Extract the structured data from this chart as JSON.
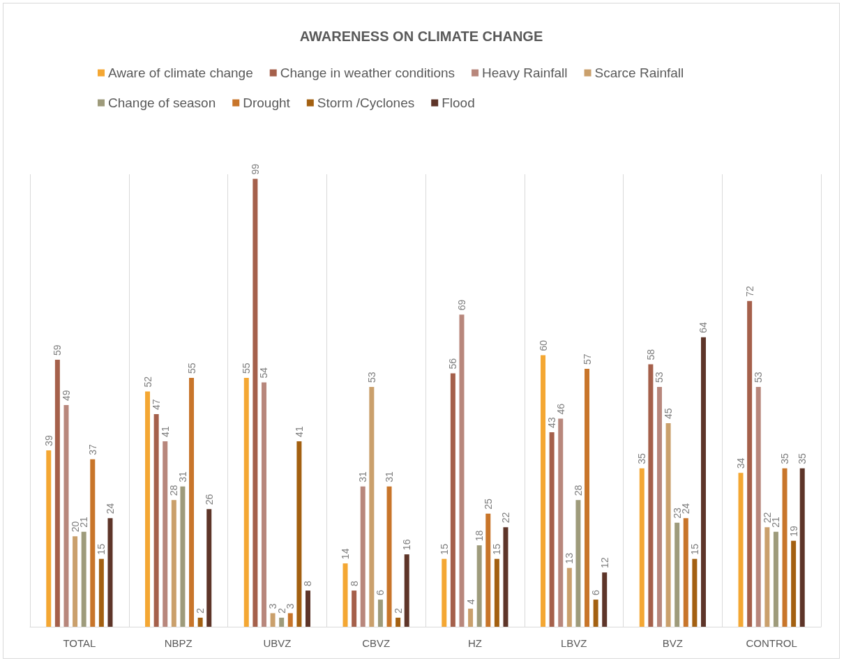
{
  "chart_data": {
    "type": "bar",
    "title": "AWARENESS ON CLIMATE CHANGE",
    "categories": [
      "TOTAL",
      "NBPZ",
      "UBVZ",
      "CBVZ",
      "HZ",
      "LBVZ",
      "BVZ",
      "CONTROL"
    ],
    "series": [
      {
        "name": "Aware of climate change",
        "color": "#f4a733",
        "values": [
          39,
          52,
          55,
          14,
          15,
          60,
          35,
          34
        ]
      },
      {
        "name": "Change in weather conditions",
        "color": "#a5604b",
        "values": [
          59,
          47,
          99,
          8,
          56,
          43,
          58,
          72
        ]
      },
      {
        "name": "Heavy Rainfall",
        "color": "#b8877c",
        "values": [
          49,
          41,
          54,
          31,
          69,
          46,
          53,
          53
        ]
      },
      {
        "name": "Scarce Rainfall",
        "color": "#caa06c",
        "values": [
          20,
          28,
          3,
          53,
          4,
          13,
          45,
          22
        ]
      },
      {
        "name": "Change of season",
        "color": "#9e9b7b",
        "values": [
          21,
          31,
          2,
          6,
          18,
          28,
          23,
          21
        ]
      },
      {
        "name": "Drought",
        "color": "#c8752a",
        "values": [
          37,
          55,
          3,
          31,
          25,
          57,
          24,
          35
        ]
      },
      {
        "name": "Storm /Cyclones",
        "color": "#a36011",
        "values": [
          15,
          2,
          41,
          2,
          15,
          6,
          15,
          19
        ]
      },
      {
        "name": "Flood",
        "color": "#5e3529",
        "values": [
          24,
          26,
          8,
          16,
          22,
          12,
          64,
          35
        ]
      }
    ],
    "data_labels": true,
    "grid": "x",
    "legend": "top"
  }
}
